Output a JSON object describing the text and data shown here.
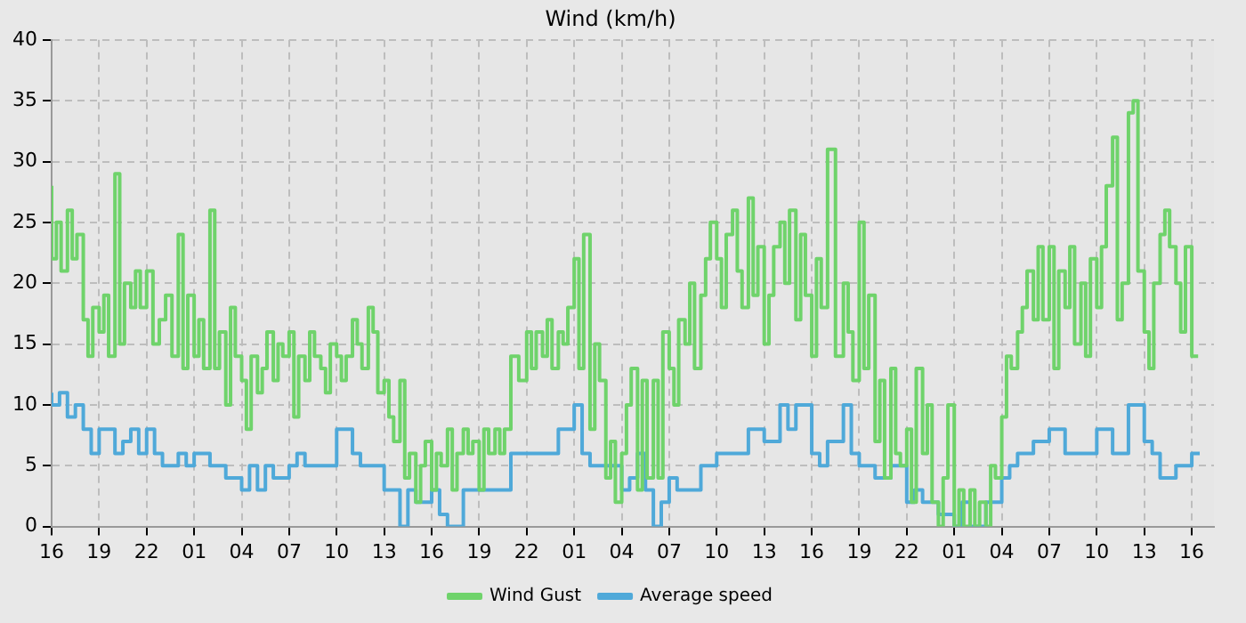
{
  "chart_data": {
    "type": "step",
    "title": "Wind (km/h)",
    "xlim": [
      "--01-01T16:00",
      "--01-04T17:24"
    ],
    "ylim": [
      0,
      40
    ],
    "yticks": [
      0,
      5,
      10,
      15,
      20,
      25,
      30,
      35,
      40
    ],
    "xticks": [
      {
        "value": "--01-01T16:00",
        "label": "16"
      },
      {
        "value": "--01-01T19:00",
        "label": "19"
      },
      {
        "value": "--01-01T22:00",
        "label": "22"
      },
      {
        "value": "--01-02T01:00",
        "label": "01"
      },
      {
        "value": "--01-02T04:00",
        "label": "04"
      },
      {
        "value": "--01-02T07:00",
        "label": "07"
      },
      {
        "value": "--01-02T10:00",
        "label": "10"
      },
      {
        "value": "--01-02T13:00",
        "label": "13"
      },
      {
        "value": "--01-02T16:00",
        "label": "16"
      },
      {
        "value": "--01-02T19:00",
        "label": "19"
      },
      {
        "value": "--01-02T22:00",
        "label": "22"
      },
      {
        "value": "--01-03T01:00",
        "label": "01"
      },
      {
        "value": "--01-03T04:00",
        "label": "04"
      },
      {
        "value": "--01-03T07:00",
        "label": "07"
      },
      {
        "value": "--01-03T10:00",
        "label": "10"
      },
      {
        "value": "--01-03T13:00",
        "label": "13"
      },
      {
        "value": "--01-03T16:00",
        "label": "16"
      },
      {
        "value": "--01-03T19:00",
        "label": "19"
      },
      {
        "value": "--01-03T22:00",
        "label": "22"
      },
      {
        "value": "--01-04T01:00",
        "label": "01"
      },
      {
        "value": "--01-04T04:00",
        "label": "04"
      },
      {
        "value": "--01-04T07:00",
        "label": "07"
      },
      {
        "value": "--01-04T10:00",
        "label": "10"
      },
      {
        "value": "--01-04T13:00",
        "label": "13"
      },
      {
        "value": "--01-04T16:00",
        "label": "16"
      }
    ],
    "grid": true,
    "legend": "bottom",
    "marker": "none",
    "line_style": "solid",
    "series": [
      {
        "name": "Wind Gust",
        "color": "#6fd36b",
        "x": [
          "--01-01T16:00",
          "--01-01T16:18",
          "--01-01T16:36",
          "--01-01T17:00",
          "--01-01T17:18",
          "--01-01T17:36",
          "--01-01T18:00",
          "--01-01T18:18",
          "--01-01T18:36",
          "--01-01T19:00",
          "--01-01T19:18",
          "--01-01T19:36",
          "--01-01T20:00",
          "--01-01T20:18",
          "--01-01T20:36",
          "--01-01T21:00",
          "--01-01T21:18",
          "--01-01T21:36",
          "--01-01T22:00",
          "--01-01T22:24",
          "--01-01T22:48",
          "--01-01T23:12",
          "--01-01T23:36",
          "--01-02T00:00",
          "--01-02T00:18",
          "--01-02T00:36",
          "--01-02T01:00",
          "--01-02T01:18",
          "--01-02T01:36",
          "--01-02T02:00",
          "--01-02T02:18",
          "--01-02T02:36",
          "--01-02T03:00",
          "--01-02T03:18",
          "--01-02T03:36",
          "--01-02T04:00",
          "--01-02T04:18",
          "--01-02T04:36",
          "--01-02T05:00",
          "--01-02T05:18",
          "--01-02T05:36",
          "--01-02T06:00",
          "--01-02T06:18",
          "--01-02T06:36",
          "--01-02T07:00",
          "--01-02T07:18",
          "--01-02T07:36",
          "--01-02T08:00",
          "--01-02T08:18",
          "--01-02T08:36",
          "--01-02T09:00",
          "--01-02T09:18",
          "--01-02T09:36",
          "--01-02T10:00",
          "--01-02T10:18",
          "--01-02T10:36",
          "--01-02T11:00",
          "--01-02T11:18",
          "--01-02T11:36",
          "--01-02T12:00",
          "--01-02T12:18",
          "--01-02T12:36",
          "--01-02T13:00",
          "--01-02T13:18",
          "--01-02T13:36",
          "--01-02T14:00",
          "--01-02T14:18",
          "--01-02T14:36",
          "--01-02T15:00",
          "--01-02T15:18",
          "--01-02T15:36",
          "--01-02T16:00",
          "--01-02T16:18",
          "--01-02T16:36",
          "--01-02T17:00",
          "--01-02T17:18",
          "--01-02T17:36",
          "--01-02T18:00",
          "--01-02T18:18",
          "--01-02T18:36",
          "--01-02T19:00",
          "--01-02T19:18",
          "--01-02T19:36",
          "--01-02T20:00",
          "--01-02T20:18",
          "--01-02T20:36",
          "--01-02T21:00",
          "--01-02T21:30",
          "--01-02T22:00",
          "--01-02T22:18",
          "--01-02T22:36",
          "--01-02T23:00",
          "--01-02T23:18",
          "--01-02T23:36",
          "--01-03T00:00",
          "--01-03T00:18",
          "--01-03T00:36",
          "--01-03T01:00",
          "--01-03T01:18",
          "--01-03T01:36",
          "--01-03T02:00",
          "--01-03T02:18",
          "--01-03T02:36",
          "--01-03T03:00",
          "--01-03T03:18",
          "--01-03T03:36",
          "--01-03T04:00",
          "--01-03T04:18",
          "--01-03T04:36",
          "--01-03T05:00",
          "--01-03T05:18",
          "--01-03T05:36",
          "--01-03T06:00",
          "--01-03T06:18",
          "--01-03T06:36",
          "--01-03T07:00",
          "--01-03T07:18",
          "--01-03T07:36",
          "--01-03T08:00",
          "--01-03T08:18",
          "--01-03T08:36",
          "--01-03T09:00",
          "--01-03T09:18",
          "--01-03T09:36",
          "--01-03T10:00",
          "--01-03T10:18",
          "--01-03T10:36",
          "--01-03T11:00",
          "--01-03T11:18",
          "--01-03T11:36",
          "--01-03T12:00",
          "--01-03T12:18",
          "--01-03T12:36",
          "--01-03T13:00",
          "--01-03T13:18",
          "--01-03T13:36",
          "--01-03T14:00",
          "--01-03T14:18",
          "--01-03T14:36",
          "--01-03T15:00",
          "--01-03T15:18",
          "--01-03T15:36",
          "--01-03T16:00",
          "--01-03T16:18",
          "--01-03T16:36",
          "--01-03T17:00",
          "--01-03T17:30",
          "--01-03T18:00",
          "--01-03T18:18",
          "--01-03T18:36",
          "--01-03T19:00",
          "--01-03T19:18",
          "--01-03T19:36",
          "--01-03T20:00",
          "--01-03T20:18",
          "--01-03T20:36",
          "--01-03T21:00",
          "--01-03T21:18",
          "--01-03T21:36",
          "--01-03T22:00",
          "--01-03T22:18",
          "--01-03T22:36",
          "--01-03T23:00",
          "--01-03T23:18",
          "--01-03T23:36",
          "--01-04T00:00",
          "--01-04T00:18",
          "--01-04T00:36",
          "--01-04T01:00",
          "--01-04T01:18",
          "--01-04T01:36",
          "--01-04T02:00",
          "--01-04T02:18",
          "--01-04T02:36",
          "--01-04T03:00",
          "--01-04T03:18",
          "--01-04T03:36",
          "--01-04T04:00",
          "--01-04T04:18",
          "--01-04T04:36",
          "--01-04T05:00",
          "--01-04T05:18",
          "--01-04T05:36",
          "--01-04T06:00",
          "--01-04T06:18",
          "--01-04T06:36",
          "--01-04T07:00",
          "--01-04T07:18",
          "--01-04T07:36",
          "--01-04T08:00",
          "--01-04T08:18",
          "--01-04T08:36",
          "--01-04T09:00",
          "--01-04T09:18",
          "--01-04T09:36",
          "--01-04T10:00",
          "--01-04T10:18",
          "--01-04T10:36",
          "--01-04T11:00",
          "--01-04T11:18",
          "--01-04T11:36",
          "--01-04T12:00",
          "--01-04T12:18",
          "--01-04T12:36",
          "--01-04T13:00",
          "--01-04T13:18",
          "--01-04T13:36",
          "--01-04T14:00",
          "--01-04T14:18",
          "--01-04T14:36",
          "--01-04T15:00",
          "--01-04T15:18",
          "--01-04T15:36",
          "--01-04T16:00",
          "--01-04T16:24"
        ],
        "values": [
          28,
          22,
          25,
          21,
          26,
          22,
          24,
          17,
          14,
          18,
          16,
          19,
          14,
          29,
          15,
          20,
          18,
          21,
          18,
          21,
          15,
          17,
          19,
          14,
          24,
          13,
          19,
          14,
          17,
          13,
          26,
          13,
          16,
          10,
          18,
          14,
          12,
          8,
          14,
          11,
          13,
          16,
          12,
          15,
          14,
          16,
          9,
          14,
          12,
          16,
          14,
          13,
          11,
          15,
          14,
          12,
          14,
          17,
          15,
          13,
          18,
          16,
          11,
          12,
          9,
          7,
          12,
          4,
          6,
          2,
          5,
          7,
          3,
          6,
          5,
          8,
          3,
          6,
          8,
          6,
          7,
          3,
          8,
          6,
          8,
          6,
          8,
          14,
          12,
          16,
          13,
          16,
          14,
          17,
          13,
          16,
          15,
          18,
          22,
          13,
          24,
          8,
          15,
          12,
          4,
          7,
          2,
          6,
          10,
          13,
          3,
          12,
          4,
          12,
          4,
          16,
          13,
          10,
          17,
          15,
          20,
          13,
          19,
          22,
          25,
          22,
          18,
          24,
          26,
          21,
          18,
          27,
          19,
          23,
          15,
          19,
          23,
          25,
          20,
          26,
          17,
          24,
          19,
          14,
          22,
          18,
          31,
          14,
          20,
          16,
          12,
          25,
          13,
          19,
          7,
          12,
          4,
          13,
          6,
          5,
          8,
          2,
          13,
          6,
          10,
          2,
          0,
          4,
          10,
          0,
          3,
          0,
          3,
          0,
          2,
          0,
          5,
          4,
          9,
          14,
          13,
          16,
          18,
          21,
          17,
          23,
          17,
          23,
          13,
          21,
          18,
          23,
          15,
          20,
          14,
          22,
          18,
          23,
          28,
          32,
          17,
          20,
          34,
          35,
          21,
          16,
          13,
          20,
          24,
          26,
          23,
          20,
          16,
          23,
          14
        ]
      },
      {
        "name": "Average speed",
        "color": "#4fa9d9",
        "x": [
          "--01-01T16:00",
          "--01-01T16:30",
          "--01-01T17:00",
          "--01-01T17:30",
          "--01-01T18:00",
          "--01-01T18:30",
          "--01-01T19:00",
          "--01-01T20:00",
          "--01-01T20:30",
          "--01-01T21:00",
          "--01-01T21:30",
          "--01-01T22:00",
          "--01-01T22:30",
          "--01-01T23:00",
          "--01-02T00:00",
          "--01-02T00:30",
          "--01-02T01:00",
          "--01-02T02:00",
          "--01-02T03:00",
          "--01-02T04:00",
          "--01-02T04:30",
          "--01-02T05:00",
          "--01-02T05:30",
          "--01-02T06:00",
          "--01-02T07:00",
          "--01-02T07:30",
          "--01-02T08:00",
          "--01-02T09:00",
          "--01-02T10:00",
          "--01-02T11:00",
          "--01-02T11:30",
          "--01-02T12:00",
          "--01-02T13:00",
          "--01-02T13:30",
          "--01-02T14:00",
          "--01-02T14:30",
          "--01-02T15:00",
          "--01-02T16:00",
          "--01-02T16:30",
          "--01-02T17:00",
          "--01-02T18:00",
          "--01-02T18:30",
          "--01-02T19:00",
          "--01-02T20:00",
          "--01-02T21:00",
          "--01-02T22:00",
          "--01-02T22:30",
          "--01-02T23:00",
          "--01-03T00:00",
          "--01-03T01:00",
          "--01-03T01:30",
          "--01-03T02:00",
          "--01-03T03:00",
          "--01-03T04:00",
          "--01-03T04:30",
          "--01-03T05:00",
          "--01-03T05:30",
          "--01-03T06:00",
          "--01-03T06:30",
          "--01-03T07:00",
          "--01-03T07:30",
          "--01-03T08:00",
          "--01-03T09:00",
          "--01-03T10:00",
          "--01-03T10:30",
          "--01-03T11:00",
          "--01-03T12:00",
          "--01-03T13:00",
          "--01-03T14:00",
          "--01-03T14:30",
          "--01-03T15:00",
          "--01-03T16:00",
          "--01-03T16:30",
          "--01-03T17:00",
          "--01-03T18:00",
          "--01-03T18:30",
          "--01-03T19:00",
          "--01-03T20:00",
          "--01-03T21:00",
          "--01-03T22:00",
          "--01-03T22:30",
          "--01-03T23:00",
          "--01-04T00:00",
          "--01-04T01:00",
          "--01-04T01:30",
          "--01-04T02:00",
          "--01-04T03:00",
          "--01-04T04:00",
          "--01-04T04:30",
          "--01-04T05:00",
          "--01-04T06:00",
          "--01-04T07:00",
          "--01-04T08:00",
          "--01-04T09:00",
          "--01-04T10:00",
          "--01-04T11:00",
          "--01-04T12:00",
          "--01-04T13:00",
          "--01-04T13:30",
          "--01-04T14:00",
          "--01-04T15:00",
          "--01-04T16:00",
          "--01-04T16:30"
        ],
        "values": [
          11,
          10,
          11,
          9,
          10,
          8,
          6,
          8,
          6,
          7,
          8,
          6,
          8,
          6,
          5,
          6,
          5,
          6,
          5,
          4,
          3,
          5,
          3,
          5,
          4,
          5,
          6,
          5,
          5,
          8,
          6,
          5,
          5,
          3,
          3,
          0,
          3,
          2,
          3,
          1,
          0,
          3,
          3,
          3,
          3,
          6,
          6,
          6,
          6,
          8,
          10,
          6,
          5,
          5,
          3,
          4,
          6,
          3,
          0,
          2,
          4,
          3,
          3,
          5,
          6,
          6,
          6,
          8,
          7,
          10,
          8,
          10,
          6,
          5,
          7,
          10,
          6,
          5,
          4,
          5,
          2,
          3,
          2,
          1,
          0,
          2,
          0,
          2,
          4,
          5,
          6,
          7,
          8,
          6,
          6,
          8,
          6,
          10,
          7,
          6,
          4,
          5,
          6
        ]
      }
    ]
  }
}
